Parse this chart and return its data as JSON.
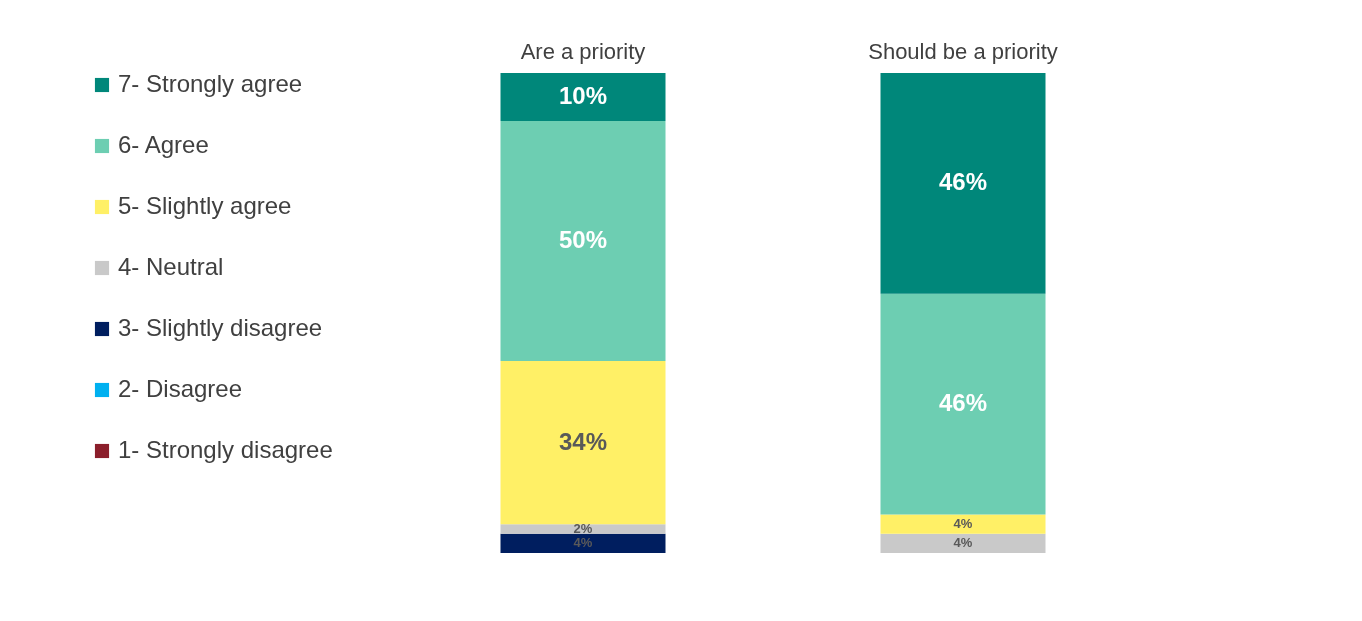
{
  "chart_data": {
    "type": "bar",
    "stacked": true,
    "legend": "left",
    "grid": false,
    "categories": [
      "Are a priority",
      "Should be a priority"
    ],
    "series": [
      {
        "name": "1- Strongly disagree",
        "color": "#8b1e2b",
        "values": [
          null,
          null
        ]
      },
      {
        "name": "2- Disagree",
        "color": "#00b0f0",
        "values": [
          null,
          null
        ]
      },
      {
        "name": "3- Slightly disagree",
        "color": "#001e5f",
        "values": [
          4,
          null
        ],
        "value_labels": [
          "4%",
          null
        ]
      },
      {
        "name": "4- Neutral",
        "color": "#c9c9c9",
        "values": [
          2,
          4
        ],
        "value_labels": [
          "2%",
          "4%"
        ]
      },
      {
        "name": "5- Slightly agree",
        "color": "#fff066",
        "values": [
          34,
          4
        ],
        "value_labels": [
          "34%",
          "4%"
        ]
      },
      {
        "name": "6- Agree",
        "color": "#6dceb2",
        "values": [
          50,
          46
        ],
        "value_labels": [
          "50%",
          "46%"
        ]
      },
      {
        "name": "7- Strongly agree",
        "color": "#00877a",
        "values": [
          10,
          46
        ],
        "value_labels": [
          "10%",
          "46%"
        ]
      }
    ]
  }
}
